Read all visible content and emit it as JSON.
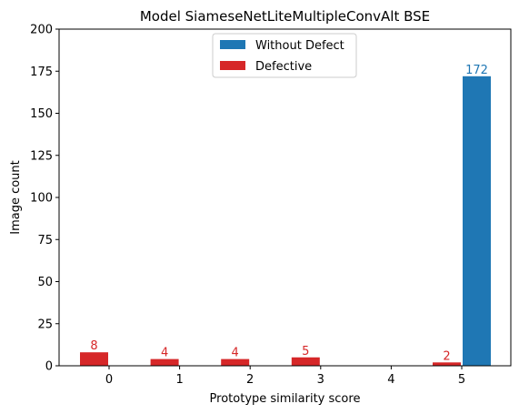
{
  "chart_data": {
    "type": "bar",
    "title": "Model SiameseNetLiteMultipleConvAlt BSE",
    "xlabel": "Prototype similarity score",
    "ylabel": "Image count",
    "categories": [
      "0",
      "1",
      "2",
      "3",
      "4",
      "5"
    ],
    "ylim": [
      0,
      200
    ],
    "yticks": [
      0,
      25,
      50,
      75,
      100,
      125,
      150,
      175,
      200
    ],
    "grid": false,
    "legend_position": "top-center",
    "series": [
      {
        "name": "Without Defect",
        "color": "#1f77b4",
        "offset": "right",
        "values": [
          0,
          0,
          0,
          0,
          0,
          172
        ],
        "labels": [
          null,
          null,
          null,
          null,
          null,
          "172"
        ]
      },
      {
        "name": "Defective",
        "color": "#d62728",
        "offset": "left",
        "values": [
          8,
          4,
          4,
          5,
          0,
          2
        ],
        "labels": [
          "8",
          "4",
          "4",
          "5",
          null,
          "2"
        ]
      }
    ]
  }
}
